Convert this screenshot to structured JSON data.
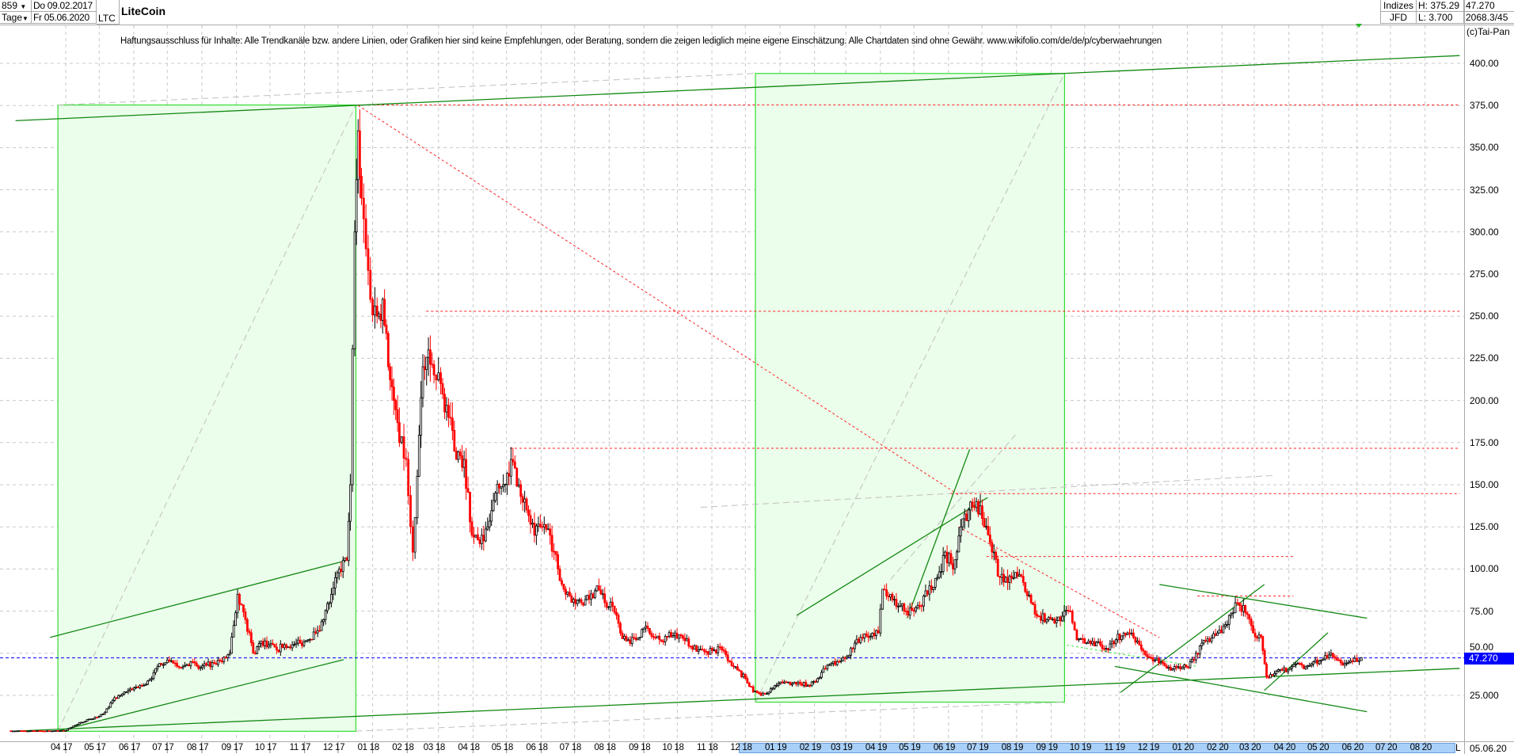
{
  "header": {
    "bars": "859",
    "start_date": "Do 09.02.2017",
    "period": "Tage",
    "end_date": "Fr 05.06.2020",
    "symbol": "LTC",
    "title": "LiteCoin",
    "category": "Indizes",
    "source": "JFD",
    "high": "H: 375.29",
    "low": "L: 3.700",
    "last": "47.270",
    "cursor_info": "2068.3/45",
    "copyright": "(c)Tai-Pan"
  },
  "disclaimer": "Haftungsausschluss für Inhalte: Alle Trendkanäle bzw. andere Linien, oder Grafiken hier sind keine Empfehlungen, oder Beratung, sondern die zeigen lediglich meine eigene Einschätzung. Alle Chartdaten sind ohne Gewähr.  www.wikifolio.com/de/de/p/cyberwaehrungen",
  "footer": {
    "scale_mode": "L",
    "last_date": "05.06.20"
  },
  "colors": {
    "up": "#000000",
    "down": "#ff0000",
    "box_fill": "#ebfdeb",
    "box_border": "#33dd33",
    "trend": "#118811",
    "level": "#ff2222",
    "current": "#0000ff",
    "axis_highlight": "#a8d0f8"
  },
  "chart_data": {
    "type": "candlestick",
    "title": "LiteCoin",
    "ylim": [
      0,
      412
    ],
    "yticks": [
      "25.000",
      "50.00",
      "75.00",
      "100.00",
      "125.00",
      "150.00",
      "175.00",
      "200.00",
      "225.00",
      "250.00",
      "275.00",
      "300.00",
      "325.00",
      "350.00",
      "375.00",
      "400.00"
    ],
    "xticks": [
      "04 17",
      "05 17",
      "06 17",
      "07 17",
      "08 17",
      "09 17",
      "10 17",
      "11 17",
      "12 17",
      "01 18",
      "02 18",
      "03 18",
      "04 18",
      "05 18",
      "06 18",
      "07 18",
      "08 18",
      "09 18",
      "10 18",
      "11 18",
      "12 18",
      "01 19",
      "02 19",
      "03 19",
      "04 19",
      "05 19",
      "06 19",
      "07 19",
      "08 19",
      "09 19",
      "10 19",
      "11 19",
      "12 19",
      "01 20",
      "02 20",
      "03 20",
      "04 20",
      "05 20",
      "06 20",
      "07 20",
      "08 20"
    ],
    "grid": true,
    "current_price": 47.27,
    "current_price_label": "47.270",
    "closes": [
      [
        "2017-02-09",
        4.0
      ],
      [
        "2017-02-24",
        3.9
      ],
      [
        "2017-03-10",
        3.9
      ],
      [
        "2017-03-25",
        4.0
      ],
      [
        "2017-04-01",
        4.1
      ],
      [
        "2017-04-08",
        7
      ],
      [
        "2017-04-15",
        9
      ],
      [
        "2017-04-22",
        11
      ],
      [
        "2017-04-29",
        12
      ],
      [
        "2017-05-06",
        15
      ],
      [
        "2017-05-13",
        22
      ],
      [
        "2017-05-20",
        25
      ],
      [
        "2017-05-27",
        28
      ],
      [
        "2017-06-03",
        30
      ],
      [
        "2017-06-10",
        31
      ],
      [
        "2017-06-17",
        35
      ],
      [
        "2017-06-24",
        44
      ],
      [
        "2017-07-01",
        46
      ],
      [
        "2017-07-08",
        44
      ],
      [
        "2017-07-15",
        42
      ],
      [
        "2017-07-22",
        45
      ],
      [
        "2017-07-29",
        41
      ],
      [
        "2017-08-05",
        43
      ],
      [
        "2017-08-12",
        44
      ],
      [
        "2017-08-19",
        45
      ],
      [
        "2017-08-26",
        50
      ],
      [
        "2017-09-02",
        85
      ],
      [
        "2017-09-09",
        70
      ],
      [
        "2017-09-16",
        50
      ],
      [
        "2017-09-23",
        57
      ],
      [
        "2017-09-30",
        55
      ],
      [
        "2017-10-07",
        52
      ],
      [
        "2017-10-14",
        55
      ],
      [
        "2017-10-21",
        55
      ],
      [
        "2017-10-28",
        56
      ],
      [
        "2017-11-04",
        58
      ],
      [
        "2017-11-11",
        62
      ],
      [
        "2017-11-18",
        70
      ],
      [
        "2017-11-25",
        85
      ],
      [
        "2017-12-02",
        100
      ],
      [
        "2017-12-09",
        105
      ],
      [
        "2017-12-12",
        150
      ],
      [
        "2017-12-16",
        300
      ],
      [
        "2017-12-19",
        360
      ],
      [
        "2017-12-22",
        320
      ],
      [
        "2017-12-26",
        290
      ],
      [
        "2017-12-30",
        260
      ],
      [
        "2018-01-05",
        250
      ],
      [
        "2018-01-10",
        260
      ],
      [
        "2018-01-15",
        220
      ],
      [
        "2018-01-20",
        200
      ],
      [
        "2018-01-25",
        175
      ],
      [
        "2018-01-31",
        165
      ],
      [
        "2018-02-06",
        110
      ],
      [
        "2018-02-10",
        155
      ],
      [
        "2018-02-15",
        220
      ],
      [
        "2018-02-20",
        230
      ],
      [
        "2018-02-25",
        215
      ],
      [
        "2018-03-03",
        210
      ],
      [
        "2018-03-10",
        190
      ],
      [
        "2018-03-17",
        165
      ],
      [
        "2018-03-24",
        165
      ],
      [
        "2018-03-31",
        120
      ],
      [
        "2018-04-07",
        115
      ],
      [
        "2018-04-14",
        125
      ],
      [
        "2018-04-21",
        145
      ],
      [
        "2018-04-28",
        150
      ],
      [
        "2018-05-05",
        165
      ],
      [
        "2018-05-12",
        150
      ],
      [
        "2018-05-19",
        135
      ],
      [
        "2018-05-26",
        120
      ],
      [
        "2018-06-02",
        125
      ],
      [
        "2018-06-09",
        120
      ],
      [
        "2018-06-16",
        100
      ],
      [
        "2018-06-23",
        85
      ],
      [
        "2018-06-30",
        82
      ],
      [
        "2018-07-07",
        80
      ],
      [
        "2018-07-14",
        82
      ],
      [
        "2018-07-21",
        90
      ],
      [
        "2018-07-28",
        80
      ],
      [
        "2018-08-04",
        78
      ],
      [
        "2018-08-11",
        62
      ],
      [
        "2018-08-18",
        58
      ],
      [
        "2018-08-25",
        58
      ],
      [
        "2018-09-01",
        65
      ],
      [
        "2018-09-08",
        60
      ],
      [
        "2018-09-15",
        58
      ],
      [
        "2018-09-22",
        60
      ],
      [
        "2018-09-29",
        62
      ],
      [
        "2018-10-06",
        59
      ],
      [
        "2018-10-13",
        54
      ],
      [
        "2018-10-20",
        52
      ],
      [
        "2018-10-27",
        51
      ],
      [
        "2018-11-03",
        52
      ],
      [
        "2018-11-10",
        52
      ],
      [
        "2018-11-17",
        45
      ],
      [
        "2018-11-24",
        40
      ],
      [
        "2018-12-01",
        35
      ],
      [
        "2018-12-08",
        27
      ],
      [
        "2018-12-15",
        25
      ],
      [
        "2018-12-22",
        27
      ],
      [
        "2018-12-29",
        31
      ],
      [
        "2019-01-05",
        33
      ],
      [
        "2019-01-12",
        32
      ],
      [
        "2019-01-19",
        32
      ],
      [
        "2019-01-26",
        31
      ],
      [
        "2019-02-02",
        33
      ],
      [
        "2019-02-09",
        41
      ],
      [
        "2019-02-16",
        44
      ],
      [
        "2019-02-23",
        45
      ],
      [
        "2019-03-02",
        48
      ],
      [
        "2019-03-09",
        56
      ],
      [
        "2019-03-16",
        59
      ],
      [
        "2019-03-23",
        60
      ],
      [
        "2019-03-30",
        62
      ],
      [
        "2019-04-03",
        88
      ],
      [
        "2019-04-10",
        85
      ],
      [
        "2019-04-17",
        78
      ],
      [
        "2019-04-24",
        75
      ],
      [
        "2019-05-01",
        75
      ],
      [
        "2019-05-08",
        78
      ],
      [
        "2019-05-15",
        90
      ],
      [
        "2019-05-22",
        95
      ],
      [
        "2019-05-29",
        110
      ],
      [
        "2019-06-05",
        100
      ],
      [
        "2019-06-12",
        125
      ],
      [
        "2019-06-19",
        135
      ],
      [
        "2019-06-26",
        140
      ],
      [
        "2019-07-03",
        125
      ],
      [
        "2019-07-10",
        110
      ],
      [
        "2019-07-17",
        95
      ],
      [
        "2019-07-24",
        92
      ],
      [
        "2019-07-31",
        98
      ],
      [
        "2019-08-07",
        92
      ],
      [
        "2019-08-14",
        80
      ],
      [
        "2019-08-21",
        72
      ],
      [
        "2019-08-28",
        70
      ],
      [
        "2019-09-04",
        68
      ],
      [
        "2019-09-11",
        72
      ],
      [
        "2019-09-18",
        75
      ],
      [
        "2019-09-24",
        58
      ],
      [
        "2019-10-01",
        56
      ],
      [
        "2019-10-08",
        57
      ],
      [
        "2019-10-15",
        55
      ],
      [
        "2019-10-22",
        52
      ],
      [
        "2019-10-29",
        58
      ],
      [
        "2019-11-05",
        62
      ],
      [
        "2019-11-12",
        62
      ],
      [
        "2019-11-19",
        55
      ],
      [
        "2019-11-26",
        48
      ],
      [
        "2019-12-03",
        46
      ],
      [
        "2019-12-10",
        44
      ],
      [
        "2019-12-17",
        40
      ],
      [
        "2019-12-24",
        42
      ],
      [
        "2019-12-31",
        42
      ],
      [
        "2020-01-07",
        46
      ],
      [
        "2020-01-14",
        56
      ],
      [
        "2020-01-21",
        57
      ],
      [
        "2020-01-28",
        62
      ],
      [
        "2020-02-04",
        67
      ],
      [
        "2020-02-11",
        74
      ],
      [
        "2020-02-15",
        80
      ],
      [
        "2020-02-22",
        74
      ],
      [
        "2020-02-29",
        62
      ],
      [
        "2020-03-07",
        60
      ],
      [
        "2020-03-12",
        36
      ],
      [
        "2020-03-19",
        38
      ],
      [
        "2020-03-26",
        40
      ],
      [
        "2020-04-02",
        41
      ],
      [
        "2020-04-09",
        44
      ],
      [
        "2020-04-16",
        42
      ],
      [
        "2020-04-23",
        45
      ],
      [
        "2020-04-30",
        46
      ],
      [
        "2020-05-07",
        49
      ],
      [
        "2020-05-14",
        46
      ],
      [
        "2020-05-21",
        44
      ],
      [
        "2020-05-28",
        45
      ],
      [
        "2020-06-05",
        47.27
      ]
    ],
    "annotations": {
      "boxes": [
        {
          "from": [
            "2017-03-25",
            3.7
          ],
          "to": [
            "2017-12-17",
            375.3
          ]
        },
        {
          "from": [
            "2018-12-10",
            21
          ],
          "to": [
            "2019-09-13",
            394
          ]
        }
      ],
      "trendlines": [
        {
          "from": [
            "2017-02-15",
            366
          ],
          "to": [
            "2020-09-01",
            404.6
          ]
        },
        {
          "from": [
            "2017-02-15",
            3.8
          ],
          "to": [
            "2020-09-01",
            41
          ]
        },
        {
          "from": [
            "2017-03-18",
            59.4
          ],
          "to": [
            "2017-12-06",
            104.6
          ]
        },
        {
          "from": [
            "2017-03-25",
            3.8
          ],
          "to": [
            "2017-12-06",
            46.2
          ]
        },
        {
          "from": [
            "2019-01-16",
            72.5
          ],
          "to": [
            "2019-07-06",
            142.4
          ]
        },
        {
          "from": [
            "2019-04-25",
            70.8
          ],
          "to": [
            "2019-06-20",
            171
          ]
        },
        {
          "from": [
            "2019-12-07",
            90.8
          ],
          "to": [
            "2020-06-10",
            70.8
          ]
        },
        {
          "from": [
            "2019-10-28",
            42.2
          ],
          "to": [
            "2020-06-10",
            15.3
          ]
        },
        {
          "from": [
            "2019-11-02",
            26.7
          ],
          "to": [
            "2020-03-10",
            90.8
          ]
        },
        {
          "from": [
            "2020-03-10",
            27.9
          ],
          "to": [
            "2020-05-06",
            62.2
          ]
        }
      ],
      "levels": [
        {
          "from": "2017-12-19",
          "to": "2020-09-01",
          "price": 375.3
        },
        {
          "from": "2018-02-18",
          "to": "2020-09-01",
          "price": 252.9
        },
        {
          "from": "2018-05-04",
          "to": "2020-09-01",
          "price": 171.6
        },
        {
          "from": "2019-06-03",
          "to": "2020-09-01",
          "price": 144.7
        },
        {
          "from": "2019-07-05",
          "to": "2020-04-05",
          "price": 107.4
        },
        {
          "from": "2020-01-10",
          "to": "2020-04-05",
          "price": 84
        }
      ],
      "level_diagonals": [
        {
          "from": [
            "2017-12-19",
            375
          ],
          "to": [
            "2019-06-10",
            144
          ]
        },
        {
          "from": [
            "2019-06-10",
            125
          ],
          "to": [
            "2019-12-07",
            59.3
          ]
        }
      ],
      "support_dashes": [
        {
          "from": [
            "2019-09-15",
            54.8
          ],
          "to": [
            "2020-01-10",
            42.2
          ]
        }
      ],
      "gray_dashes": [
        {
          "from": [
            "2017-03-25",
            3.8
          ],
          "to": [
            "2017-12-17",
            375.3
          ]
        },
        {
          "from": [
            "2018-12-10",
            21
          ],
          "to": [
            "2019-09-13",
            394
          ]
        },
        {
          "from": [
            "2017-03-25",
            375.3
          ],
          "to": [
            "2018-12-10",
            394
          ]
        },
        {
          "from": [
            "2017-12-17",
            3.8
          ],
          "to": [
            "2019-09-13",
            21
          ]
        },
        {
          "from": [
            "2018-10-22",
            136.6
          ],
          "to": [
            "2020-03-19",
            155.5
          ]
        },
        {
          "from": [
            "2019-04-10",
            93.7
          ],
          "to": [
            "2019-07-31",
            179.6
          ]
        }
      ]
    }
  }
}
